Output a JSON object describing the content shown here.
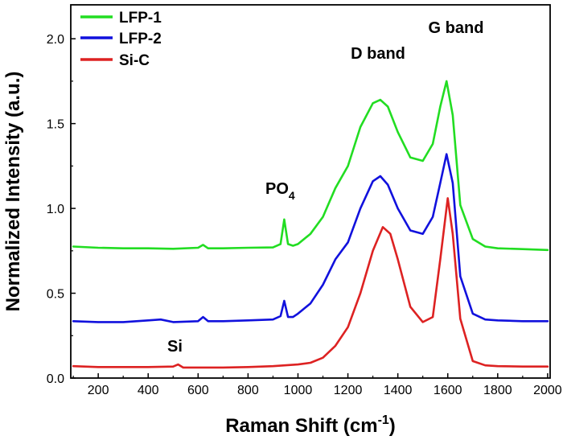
{
  "chart_data": {
    "type": "line",
    "xlabel": "Raman Shift (cm",
    "xlabel_sup": "-1",
    "xlabel_tail": ")",
    "ylabel": "Normalized Intensity (a.u.)",
    "xlim": [
      90,
      2010
    ],
    "ylim": [
      0.0,
      2.2
    ],
    "x_ticks": [
      200,
      400,
      600,
      800,
      1000,
      1200,
      1400,
      1600,
      1800,
      2000
    ],
    "y_ticks": [
      0.0,
      0.5,
      1.0,
      1.5,
      2.0
    ],
    "x_tick_labels": [
      "200",
      "400",
      "600",
      "800",
      "1000",
      "1200",
      "1400",
      "1600",
      "1800",
      "2000"
    ],
    "y_tick_labels": [
      "0.0",
      "0.5",
      "1.0",
      "1.5",
      "2.0"
    ],
    "legend_position": "top-left",
    "grid": false,
    "annotations": [
      {
        "text": "D band",
        "x": 1330,
        "y": 1.78
      },
      {
        "text": "G band",
        "x": 1615,
        "y": 1.92
      },
      {
        "text": "PO",
        "sub": "4",
        "x": 945,
        "y": 1.02
      },
      {
        "text": "Si",
        "x": 480,
        "y": 0.12
      }
    ],
    "series": [
      {
        "name": "LFP-1",
        "color": "#22dd22",
        "x": [
          100,
          200,
          300,
          400,
          500,
          600,
          620,
          640,
          700,
          800,
          900,
          930,
          945,
          960,
          980,
          1000,
          1050,
          1100,
          1150,
          1200,
          1250,
          1300,
          1330,
          1360,
          1400,
          1450,
          1500,
          1540,
          1570,
          1595,
          1620,
          1650,
          1700,
          1750,
          1800,
          1900,
          2000
        ],
        "y": [
          0.775,
          0.768,
          0.765,
          0.765,
          0.762,
          0.768,
          0.785,
          0.765,
          0.765,
          0.768,
          0.77,
          0.79,
          0.935,
          0.79,
          0.78,
          0.79,
          0.85,
          0.95,
          1.12,
          1.25,
          1.48,
          1.62,
          1.64,
          1.6,
          1.45,
          1.3,
          1.28,
          1.38,
          1.6,
          1.75,
          1.55,
          1.02,
          0.82,
          0.775,
          0.765,
          0.76,
          0.755
        ]
      },
      {
        "name": "LFP-2",
        "color": "#1111dd",
        "x": [
          100,
          200,
          300,
          400,
          450,
          500,
          600,
          620,
          640,
          700,
          800,
          900,
          930,
          945,
          960,
          980,
          1000,
          1050,
          1100,
          1150,
          1200,
          1250,
          1300,
          1330,
          1360,
          1400,
          1450,
          1500,
          1540,
          1570,
          1595,
          1620,
          1650,
          1700,
          1750,
          1800,
          1900,
          2000
        ],
        "y": [
          0.335,
          0.33,
          0.33,
          0.34,
          0.345,
          0.33,
          0.335,
          0.36,
          0.335,
          0.335,
          0.34,
          0.345,
          0.365,
          0.455,
          0.36,
          0.36,
          0.38,
          0.44,
          0.55,
          0.7,
          0.8,
          1.0,
          1.16,
          1.19,
          1.14,
          1.0,
          0.87,
          0.85,
          0.95,
          1.15,
          1.32,
          1.15,
          0.6,
          0.38,
          0.345,
          0.34,
          0.335,
          0.335
        ]
      },
      {
        "name": "Si-C",
        "color": "#dd2222",
        "x": [
          100,
          200,
          300,
          400,
          500,
          520,
          540,
          600,
          700,
          800,
          900,
          1000,
          1050,
          1100,
          1150,
          1200,
          1250,
          1300,
          1340,
          1370,
          1400,
          1450,
          1500,
          1540,
          1570,
          1600,
          1620,
          1650,
          1700,
          1750,
          1800,
          1900,
          2000
        ],
        "y": [
          0.07,
          0.065,
          0.065,
          0.065,
          0.068,
          0.08,
          0.062,
          0.062,
          0.062,
          0.065,
          0.07,
          0.08,
          0.09,
          0.12,
          0.19,
          0.3,
          0.5,
          0.75,
          0.89,
          0.85,
          0.7,
          0.42,
          0.33,
          0.36,
          0.7,
          1.06,
          0.85,
          0.35,
          0.1,
          0.075,
          0.07,
          0.068,
          0.068
        ]
      }
    ]
  }
}
